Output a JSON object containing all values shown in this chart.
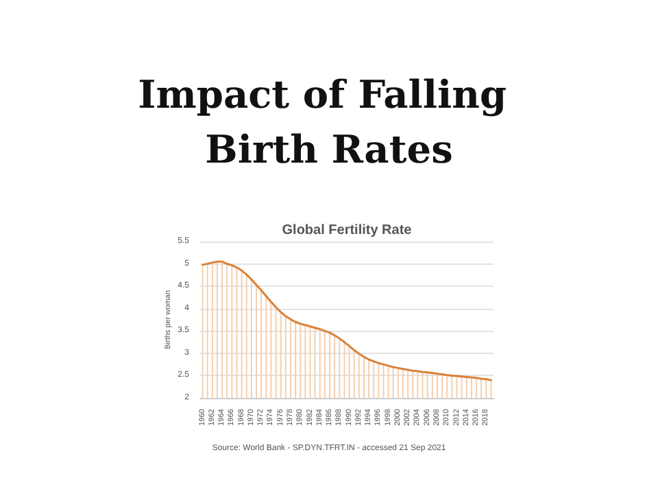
{
  "chart_data": {
    "type": "line",
    "title": "Impact of Falling Birth Rates",
    "subtitle": "Global Fertility Rate",
    "ylabel": "Births per woman",
    "annotations": [
      "Source: World Bank - SP.DYN.TFRT.IN - accessed 21 Sep 2021"
    ],
    "categories": [
      "1960",
      null,
      "1962",
      null,
      "1964",
      null,
      "1966",
      null,
      "1968",
      null,
      "1970",
      null,
      "1972",
      null,
      "1974",
      null,
      "1976",
      null,
      "1978",
      null,
      "1980",
      null,
      "1982",
      null,
      "1984",
      null,
      "1986",
      null,
      "1988",
      null,
      "1990",
      null,
      "1992",
      null,
      "1994",
      null,
      "1996",
      null,
      "1998",
      null,
      "2000",
      null,
      "2002",
      null,
      "2004",
      null,
      "2006",
      null,
      "2008",
      null,
      "2010",
      null,
      "2012",
      null,
      "2014",
      null,
      "2016",
      null,
      "2018",
      null
    ],
    "series": [
      {
        "type": "bar",
        "color": "#f5cfae",
        "values": [
          4.98,
          5.0,
          5.03,
          5.05,
          5.05,
          5.0,
          4.97,
          4.92,
          4.85,
          4.76,
          4.65,
          4.53,
          4.41,
          4.28,
          4.15,
          4.03,
          3.92,
          3.83,
          3.76,
          3.7,
          3.66,
          3.63,
          3.6,
          3.57,
          3.54,
          3.5,
          3.46,
          3.4,
          3.33,
          3.25,
          3.16,
          3.07,
          2.99,
          2.92,
          2.86,
          2.82,
          2.78,
          2.75,
          2.72,
          2.69,
          2.67,
          2.65,
          2.63,
          2.61,
          2.6,
          2.58,
          2.57,
          2.56,
          2.54,
          2.53,
          2.51,
          2.5,
          2.49,
          2.48,
          2.47,
          2.46,
          2.45,
          2.43,
          2.42,
          2.4
        ]
      },
      {
        "color": "#d8823a",
        "values": [
          4.98,
          5.0,
          5.03,
          5.05,
          5.05,
          5.0,
          4.97,
          4.92,
          4.85,
          4.76,
          4.65,
          4.53,
          4.41,
          4.28,
          4.15,
          4.03,
          3.92,
          3.83,
          3.76,
          3.7,
          3.66,
          3.63,
          3.6,
          3.57,
          3.54,
          3.5,
          3.46,
          3.4,
          3.33,
          3.25,
          3.16,
          3.07,
          2.99,
          2.92,
          2.86,
          2.82,
          2.78,
          2.75,
          2.72,
          2.69,
          2.67,
          2.65,
          2.63,
          2.61,
          2.6,
          2.58,
          2.57,
          2.56,
          2.54,
          2.53,
          2.51,
          2.5,
          2.49,
          2.48,
          2.47,
          2.46,
          2.45,
          2.43,
          2.42,
          2.4
        ]
      }
    ],
    "ylim": [
      2,
      5.5
    ],
    "yticks": [
      2,
      2.5,
      3,
      3.5,
      4,
      4.5,
      5,
      5.5
    ],
    "grid": "y",
    "marker": "none",
    "line_style": "solid"
  }
}
